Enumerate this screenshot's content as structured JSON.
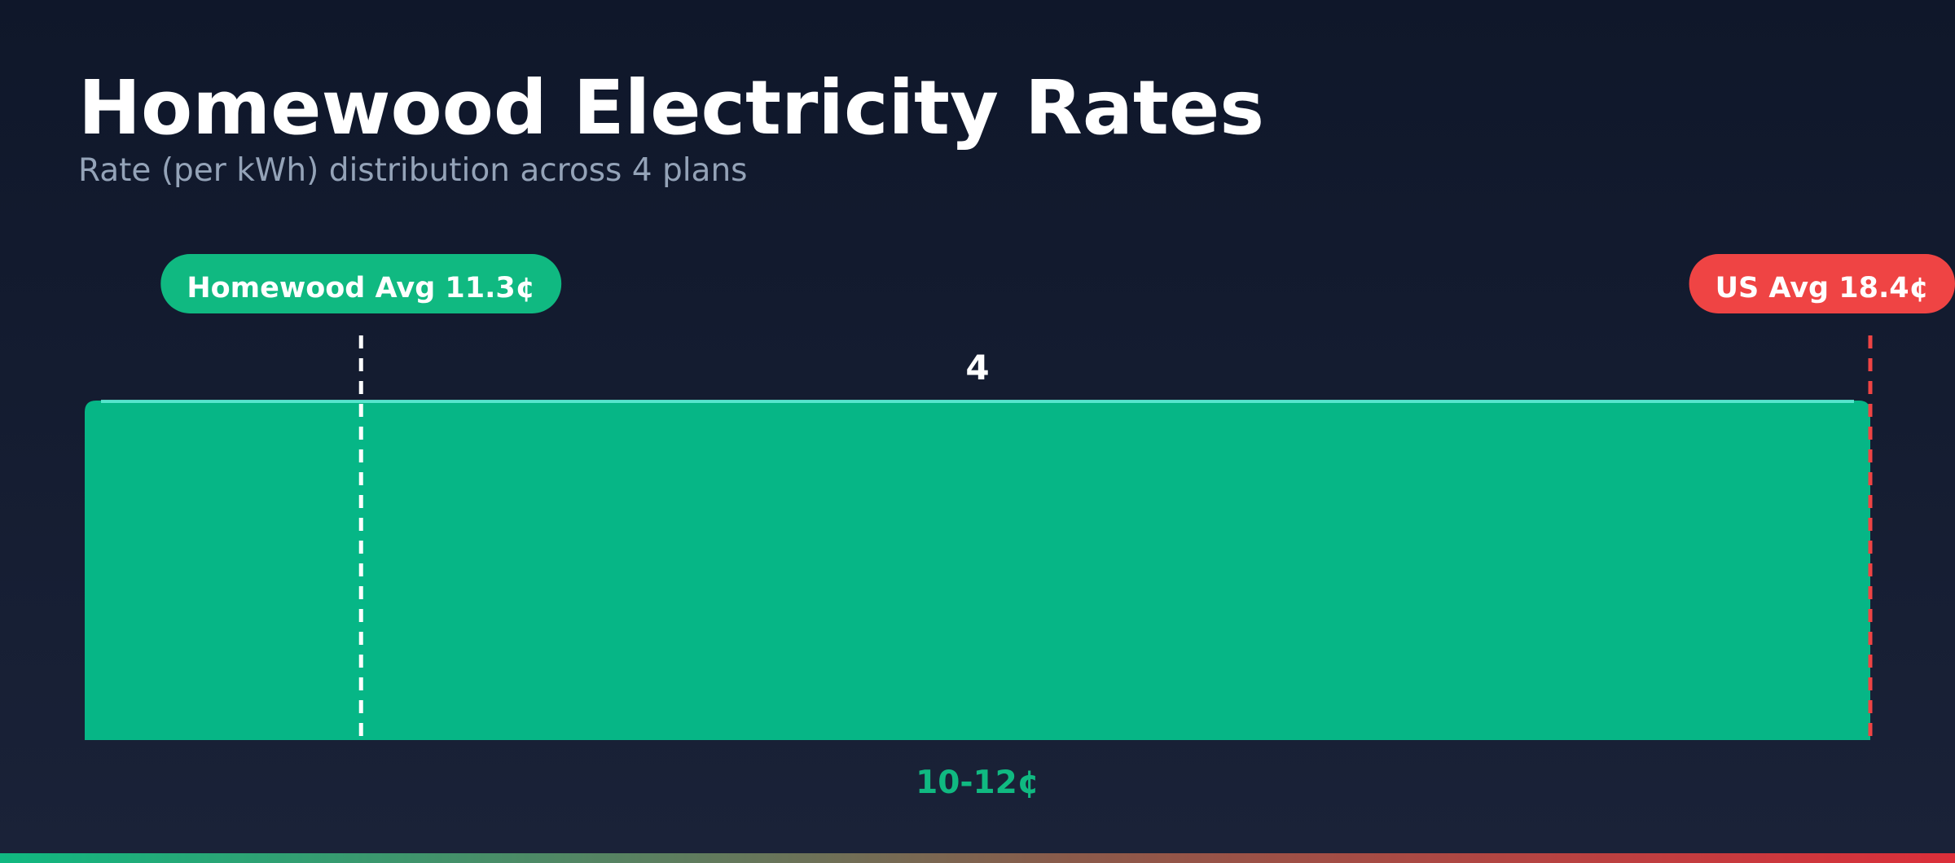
{
  "title": "Homewood Electricity Rates",
  "subtitle": "Rate (per kWh) distribution across 4 plans",
  "colors": {
    "bar": "#06b686",
    "bar_top": "#5eead4",
    "local_avg": "#10b981",
    "us_avg": "#ef4444",
    "title": "#ffffff",
    "subtitle": "#94a3b8"
  },
  "chart_data": {
    "type": "bar",
    "title": "Homewood Electricity Rates",
    "subtitle": "Rate (per kWh) distribution across 4 plans",
    "categories": [
      "10-12¢"
    ],
    "bins": [
      {
        "label": "10-12¢",
        "range": [
          10,
          12
        ],
        "count": 4
      }
    ],
    "values": [
      4
    ],
    "xlabel": "",
    "ylabel": "",
    "xlim": [
      10,
      18.4
    ],
    "ylim": [
      0,
      4
    ],
    "grid": false,
    "annotations": [
      {
        "label": "Homewood Avg 11.3¢",
        "value": 11.3,
        "style": "dashed",
        "color": "#ffffff",
        "badge_color": "#10b981"
      },
      {
        "label": "US Avg 18.4¢",
        "value": 18.4,
        "style": "dashed",
        "color": "#ef4444",
        "badge_color": "#ef4444"
      }
    ]
  }
}
